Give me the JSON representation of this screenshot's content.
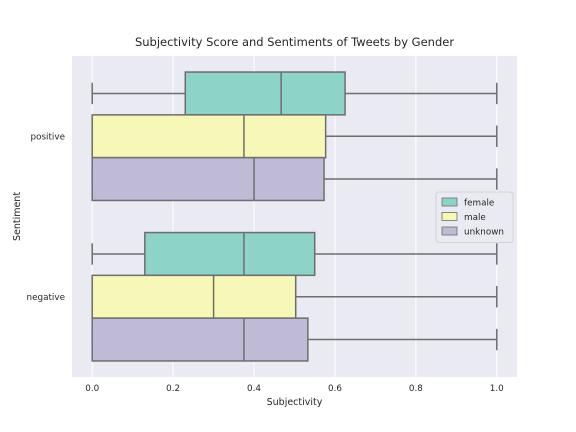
{
  "chart_data": {
    "type": "boxplot",
    "orientation": "horizontal",
    "title": "Subjectivity Score and Sentiments of Tweets by Gender",
    "xlabel": "Subjectivity",
    "ylabel": "Sentiment",
    "xlim": [
      -0.05,
      1.05
    ],
    "xticks": [
      0.0,
      0.2,
      0.4,
      0.6,
      0.8,
      1.0
    ],
    "xtick_labels": [
      "0.0",
      "0.2",
      "0.4",
      "0.6",
      "0.8",
      "1.0"
    ],
    "categories": [
      "positive",
      "negative"
    ],
    "grid": true,
    "legend_position": "center-right",
    "series": [
      {
        "name": "female",
        "color": "#8dd3c7",
        "boxes": [
          {
            "category": "positive",
            "whisker_low": 0.0,
            "q1": 0.23,
            "median": 0.467,
            "q3": 0.625,
            "whisker_high": 1.0
          },
          {
            "category": "negative",
            "whisker_low": 0.0,
            "q1": 0.13,
            "median": 0.375,
            "q3": 0.55,
            "whisker_high": 1.0
          }
        ]
      },
      {
        "name": "male",
        "color": "#f7f7b8",
        "boxes": [
          {
            "category": "positive",
            "whisker_low": 0.0,
            "q1": 0.0,
            "median": 0.375,
            "q3": 0.577,
            "whisker_high": 1.0
          },
          {
            "category": "negative",
            "whisker_low": 0.0,
            "q1": 0.0,
            "median": 0.3,
            "q3": 0.503,
            "whisker_high": 1.0
          }
        ]
      },
      {
        "name": "unknown",
        "color": "#bfbbd6",
        "boxes": [
          {
            "category": "positive",
            "whisker_low": 0.0,
            "q1": 0.0,
            "median": 0.4,
            "q3": 0.573,
            "whisker_high": 1.0
          },
          {
            "category": "negative",
            "whisker_low": 0.0,
            "q1": 0.0,
            "median": 0.375,
            "q3": 0.533,
            "whisker_high": 1.0
          }
        ]
      }
    ]
  }
}
